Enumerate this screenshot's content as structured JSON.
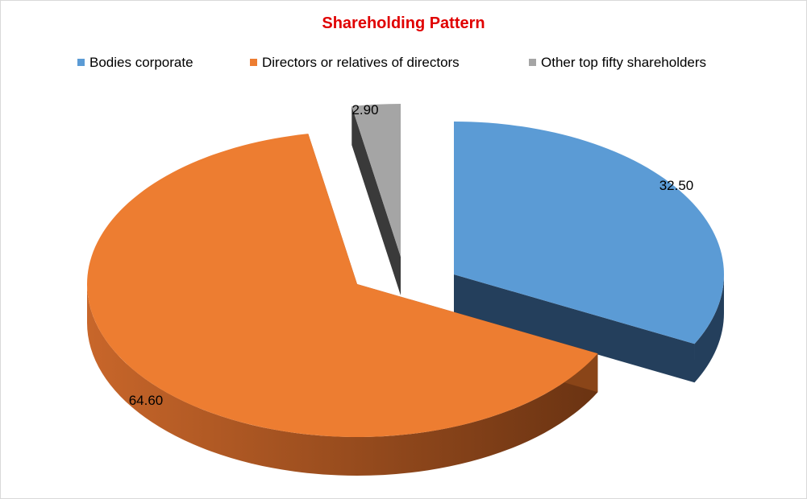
{
  "chart_data": {
    "type": "pie",
    "variant": "3d-exploded",
    "title": "Shareholding Pattern",
    "legend_position": "top",
    "categories": [
      "Bodies corporate",
      "Directors or relatives of directors",
      "Other top fifty shareholders"
    ],
    "values": [
      32.5,
      64.6,
      2.9
    ],
    "value_labels": [
      "32.50",
      "64.60",
      "2.90"
    ],
    "colors": [
      "#5B9BD5",
      "#ED7D31",
      "#A5A5A5"
    ],
    "side_colors": [
      "#243F5C",
      "#8A4518",
      "#3A3A3A"
    ],
    "title_color": "#E00000"
  }
}
